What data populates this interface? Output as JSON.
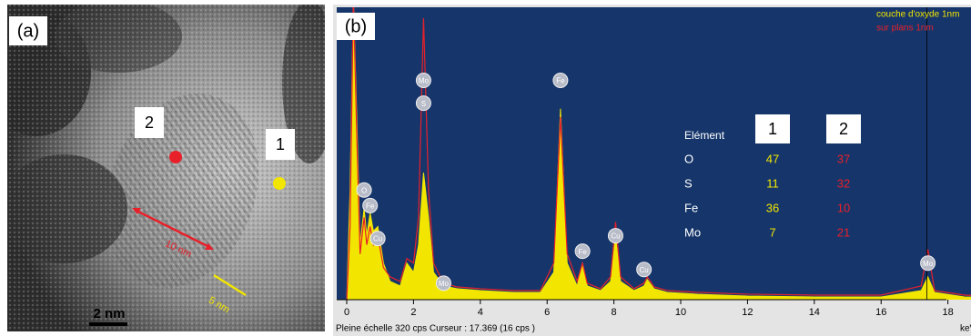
{
  "panel_a": {
    "label": "(a)",
    "markers": [
      "2",
      "1"
    ],
    "measure_red": "10 nm",
    "measure_yellow": "5 nm",
    "scale_bar": "2 nm"
  },
  "panel_b": {
    "label": "(b)",
    "status": "Pleine échelle 320 cps  Curseur : 17.369  (16 cps )",
    "table": {
      "header": [
        "Elément",
        "1",
        "2"
      ],
      "rows": [
        [
          "O",
          "47",
          "37"
        ],
        [
          "S",
          "11",
          "32"
        ],
        [
          "Fe",
          "36",
          "10"
        ],
        [
          "Mo",
          "7",
          "21"
        ]
      ]
    }
  },
  "chart_data": {
    "type": "spectrum",
    "x_label": "keV",
    "x": [
      0,
      0.1,
      0.2,
      0.3,
      0.4,
      0.52,
      0.6,
      0.7,
      0.8,
      0.93,
      1.1,
      1.3,
      1.6,
      1.8,
      2.0,
      2.15,
      2.3,
      2.45,
      2.6,
      2.9,
      3.3,
      4,
      5,
      5.8,
      6.2,
      6.4,
      6.6,
      6.9,
      7.06,
      7.2,
      7.6,
      7.9,
      8.05,
      8.2,
      8.6,
      8.9,
      9.0,
      9.2,
      9.6,
      10.5,
      12,
      14,
      16,
      17.2,
      17.4,
      17.6,
      18.5,
      20
    ],
    "series": [
      {
        "name": "couche d'oxyde 1nm",
        "color": "#f2e600",
        "fill": true,
        "values": [
          0,
          120,
          330,
          200,
          60,
          100,
          70,
          95,
          75,
          80,
          40,
          20,
          15,
          40,
          30,
          60,
          139,
          90,
          30,
          15,
          12,
          10,
          8,
          8,
          30,
          209,
          40,
          15,
          40,
          15,
          10,
          20,
          70,
          20,
          10,
          15,
          22,
          12,
          8,
          6,
          4,
          3,
          3,
          10,
          25,
          8,
          3,
          2
        ]
      },
      {
        "name": "sur plans 1nm",
        "color": "#e8202a",
        "fill": false,
        "values": [
          0,
          80,
          330,
          180,
          50,
          90,
          60,
          80,
          60,
          70,
          35,
          25,
          20,
          45,
          40,
          90,
          308,
          120,
          40,
          18,
          14,
          12,
          10,
          10,
          40,
          200,
          50,
          20,
          40,
          18,
          12,
          25,
          85,
          25,
          12,
          18,
          25,
          14,
          10,
          8,
          6,
          5,
          5,
          15,
          55,
          10,
          5,
          3
        ]
      }
    ],
    "annotations": [
      {
        "text": "O",
        "x": 0.52,
        "y": 120
      },
      {
        "text": "Fe",
        "x": 0.7,
        "y": 103
      },
      {
        "text": "Cu",
        "x": 0.93,
        "y": 67
      },
      {
        "text": "Mo",
        "x": 2.3,
        "y": 240
      },
      {
        "text": "S",
        "x": 2.3,
        "y": 215
      },
      {
        "text": "Mo",
        "x": 2.9,
        "y": 18
      },
      {
        "text": "Fe",
        "x": 6.4,
        "y": 240
      },
      {
        "text": "Fe",
        "x": 7.06,
        "y": 53
      },
      {
        "text": "Cu",
        "x": 8.05,
        "y": 70
      },
      {
        "text": "Cu",
        "x": 8.9,
        "y": 33
      },
      {
        "text": "Mo",
        "x": 17.4,
        "y": 40
      }
    ],
    "cursor": 17.369,
    "xlim": [
      -0.3,
      19.4
    ],
    "xticks": [
      0,
      2,
      4,
      6,
      8,
      10,
      12,
      14,
      16,
      18
    ],
    "ylim": [
      0,
      320
    ],
    "background": "#16366b"
  }
}
